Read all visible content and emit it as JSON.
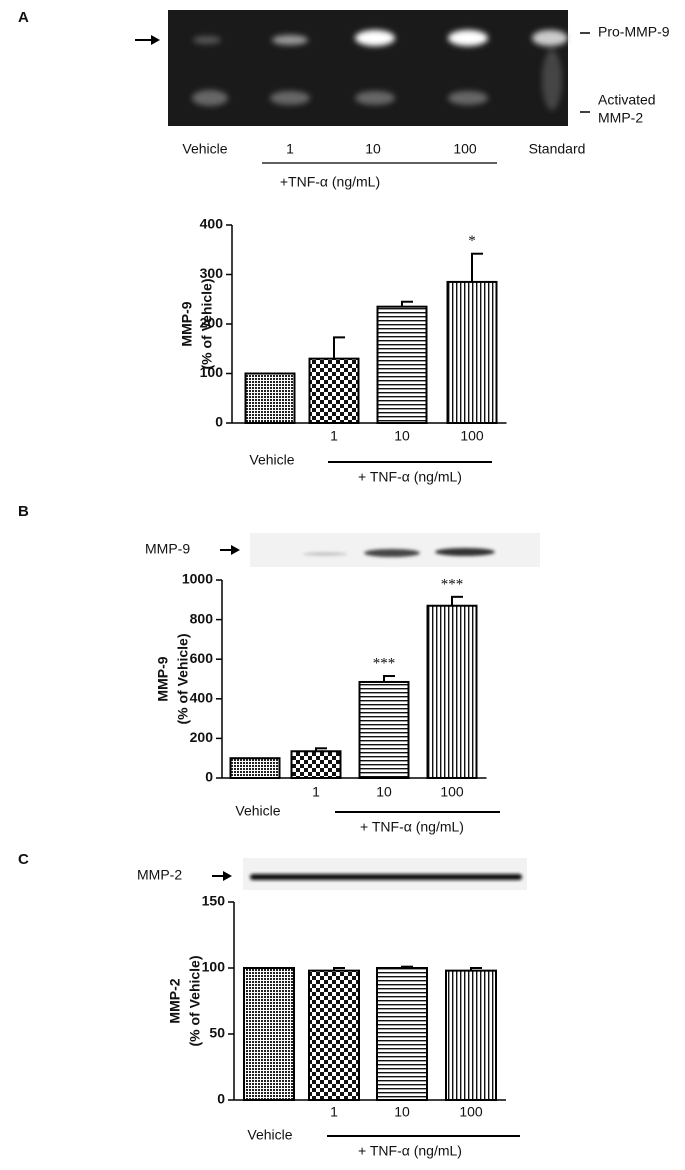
{
  "chart_data": [
    {
      "type": "bar",
      "panel": "A",
      "gel": {
        "lanes": [
          "Vehicle",
          "1",
          "10",
          "100",
          "Standard"
        ],
        "group_label": "+TNF-α (ng/mL)",
        "band_top": "Pro-MMP-9",
        "band_bottom": [
          "Activated",
          "MMP-2"
        ]
      },
      "ylabel": [
        "MMP-9",
        "(% of Vehicle)"
      ],
      "categories": [
        "Vehicle",
        "1",
        "10",
        "100"
      ],
      "group_label": "+ TNF-α (ng/mL)",
      "values": [
        100,
        130,
        235,
        285
      ],
      "errors": [
        0,
        43,
        10,
        57
      ],
      "significance": [
        null,
        null,
        null,
        "*"
      ],
      "patterns": [
        "dots",
        "checker",
        "hlines",
        "vlines"
      ],
      "color": "#000000",
      "ylim": [
        0,
        400
      ],
      "yticks": [
        0,
        100,
        200,
        300,
        400
      ]
    },
    {
      "type": "bar",
      "panel": "B",
      "blot_label": "MMP-9",
      "ylabel": [
        "MMP-9",
        "(% of Vehicle)"
      ],
      "categories": [
        "Vehicle",
        "1",
        "10",
        "100"
      ],
      "group_label": "+ TNF-α (ng/mL)",
      "values": [
        100,
        135,
        485,
        870
      ],
      "errors": [
        0,
        15,
        30,
        45
      ],
      "significance": [
        null,
        null,
        "***",
        "***"
      ],
      "patterns": [
        "dots",
        "checker",
        "hlines",
        "vlines"
      ],
      "color": "#000000",
      "ylim": [
        0,
        1000
      ],
      "yticks": [
        0,
        200,
        400,
        600,
        800,
        1000
      ]
    },
    {
      "type": "bar",
      "panel": "C",
      "blot_label": "MMP-2",
      "ylabel": [
        "MMP-2",
        "(% of Vehicle)"
      ],
      "categories": [
        "Vehicle",
        "1",
        "10",
        "100"
      ],
      "group_label": "+ TNF-α (ng/mL)",
      "values": [
        100,
        98,
        100,
        98
      ],
      "errors": [
        0,
        2,
        1,
        2
      ],
      "significance": [
        null,
        null,
        null,
        null
      ],
      "patterns": [
        "dots",
        "checker",
        "hlines",
        "vlines"
      ],
      "color": "#000000",
      "ylim": [
        0,
        150
      ],
      "yticks": [
        0,
        50,
        100,
        150
      ]
    }
  ]
}
